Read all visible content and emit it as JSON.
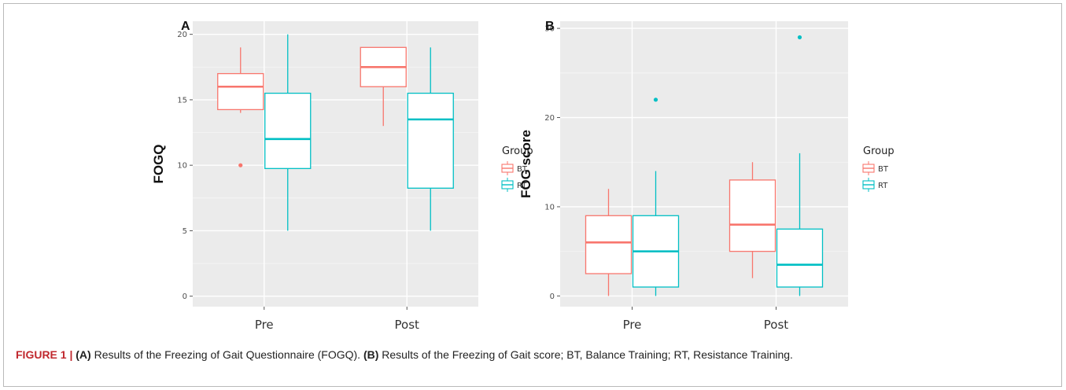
{
  "chart_data": [
    {
      "panel_label": "A",
      "type": "box",
      "ylabel": "FOGQ",
      "xlabel": "",
      "categories": [
        "Pre",
        "Post"
      ],
      "yticks": [
        "0",
        "5",
        "10",
        "15",
        "20"
      ],
      "ylim": [
        -0.8,
        21
      ],
      "legend": {
        "title": "Group",
        "position": "right"
      },
      "series": [
        {
          "name": "BT",
          "color": "#F8766D",
          "boxes": [
            {
              "category": "Pre",
              "lower_whisker": 14,
              "q1": 14.25,
              "median": 16,
              "q3": 17,
              "upper_whisker": 19,
              "outliers": [
                10
              ]
            },
            {
              "category": "Post",
              "lower_whisker": 13,
              "q1": 16,
              "median": 17.5,
              "q3": 19,
              "upper_whisker": 19,
              "outliers": []
            }
          ]
        },
        {
          "name": "RT",
          "color": "#00BFC4",
          "boxes": [
            {
              "category": "Pre",
              "lower_whisker": 5,
              "q1": 9.75,
              "median": 12,
              "q3": 15.5,
              "upper_whisker": 20,
              "outliers": []
            },
            {
              "category": "Post",
              "lower_whisker": 5,
              "q1": 8.25,
              "median": 13.5,
              "q3": 15.5,
              "upper_whisker": 19,
              "outliers": []
            }
          ]
        }
      ],
      "grid": true
    },
    {
      "panel_label": "B",
      "type": "box",
      "ylabel": "FOG score",
      "xlabel": "",
      "categories": [
        "Pre",
        "Post"
      ],
      "yticks": [
        "0",
        "10",
        "20",
        "30"
      ],
      "ylim": [
        -1.2,
        30.8
      ],
      "legend": {
        "title": "Group",
        "position": "right"
      },
      "series": [
        {
          "name": "BT",
          "color": "#F8766D",
          "boxes": [
            {
              "category": "Pre",
              "lower_whisker": 0,
              "q1": 2.5,
              "median": 6,
              "q3": 9,
              "upper_whisker": 12,
              "outliers": []
            },
            {
              "category": "Post",
              "lower_whisker": 2,
              "q1": 5,
              "median": 8,
              "q3": 13,
              "upper_whisker": 15,
              "outliers": []
            }
          ]
        },
        {
          "name": "RT",
          "color": "#00BFC4",
          "boxes": [
            {
              "category": "Pre",
              "lower_whisker": 0,
              "q1": 1,
              "median": 5,
              "q3": 9,
              "upper_whisker": 14,
              "outliers": [
                22
              ]
            },
            {
              "category": "Post",
              "lower_whisker": 0,
              "q1": 1,
              "median": 3.5,
              "q3": 7.5,
              "upper_whisker": 16,
              "outliers": [
                29
              ]
            }
          ]
        }
      ],
      "grid": true
    }
  ],
  "caption": {
    "label": "FIGURE 1 |",
    "part_a": "(A)",
    "text_a": " Results of the Freezing of Gait Questionnaire (FOGQ). ",
    "part_b": "(B)",
    "text_b": " Results of the Freezing of Gait score; BT, Balance Training; RT, Resistance Training."
  }
}
